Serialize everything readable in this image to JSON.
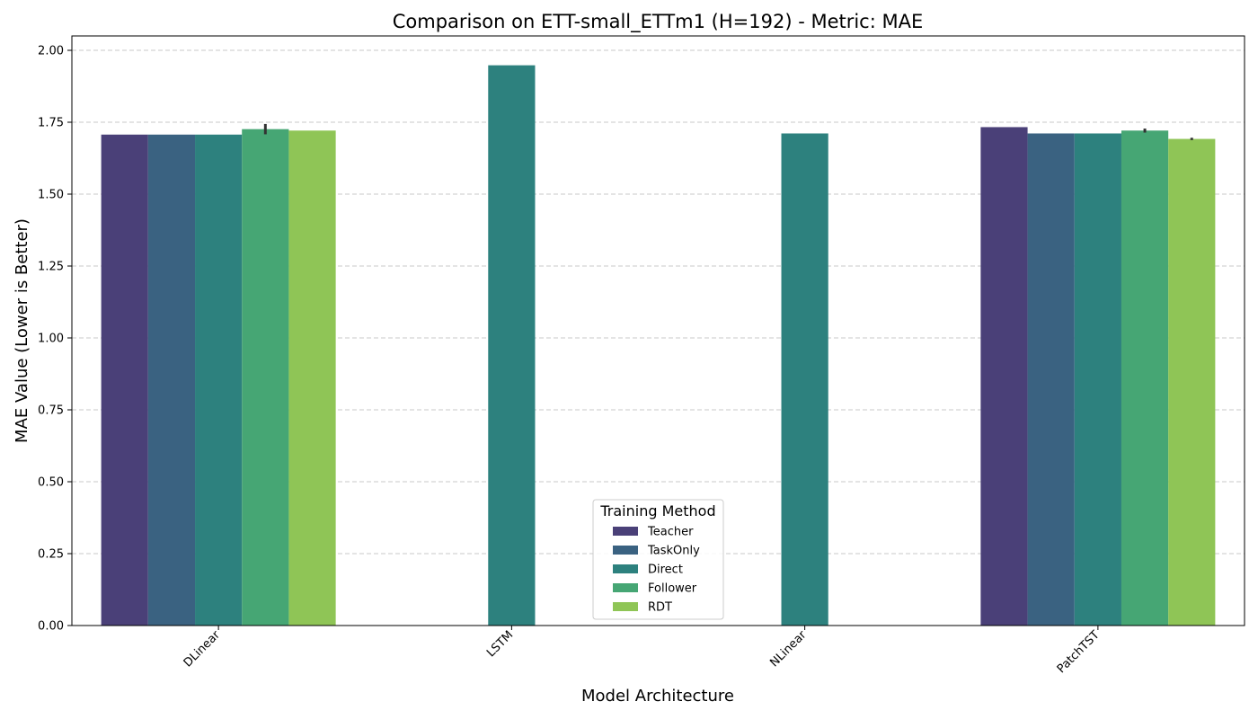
{
  "chart_data": {
    "type": "bar",
    "title": "Comparison on ETT-small_ETTm1 (H=192) - Metric: MAE",
    "xlabel": "Model Architecture",
    "ylabel": "MAE Value (Lower is Better)",
    "ylim": [
      0,
      2.05
    ],
    "yticks": [
      "0.00",
      "0.25",
      "0.50",
      "0.75",
      "1.00",
      "1.25",
      "1.50",
      "1.75",
      "2.00"
    ],
    "grid": "horizontal dashed",
    "legend_position": "bottom-center",
    "legend_title": "Training Method",
    "categories": [
      "DLinear",
      "LSTM",
      "NLinear",
      "PatchTST"
    ],
    "series": [
      {
        "name": "Teacher",
        "color": "#4a4078",
        "values": [
          1.707,
          null,
          null,
          1.733
        ],
        "errors": [
          0,
          null,
          null,
          0
        ]
      },
      {
        "name": "TaskOnly",
        "color": "#3a6281",
        "values": [
          1.707,
          null,
          null,
          1.711
        ],
        "errors": [
          0,
          null,
          null,
          0
        ]
      },
      {
        "name": "Direct",
        "color": "#2d817e",
        "values": [
          1.707,
          1.948,
          1.711,
          1.711
        ],
        "errors": [
          0,
          0,
          0,
          0
        ]
      },
      {
        "name": "Follower",
        "color": "#46a674",
        "values": [
          1.726,
          null,
          null,
          1.721
        ],
        "errors": [
          0.018,
          null,
          null,
          0.007
        ]
      },
      {
        "name": "RDT",
        "color": "#8fc556",
        "values": [
          1.721,
          null,
          null,
          1.692
        ],
        "errors": [
          0,
          null,
          null,
          0.004
        ]
      }
    ]
  }
}
